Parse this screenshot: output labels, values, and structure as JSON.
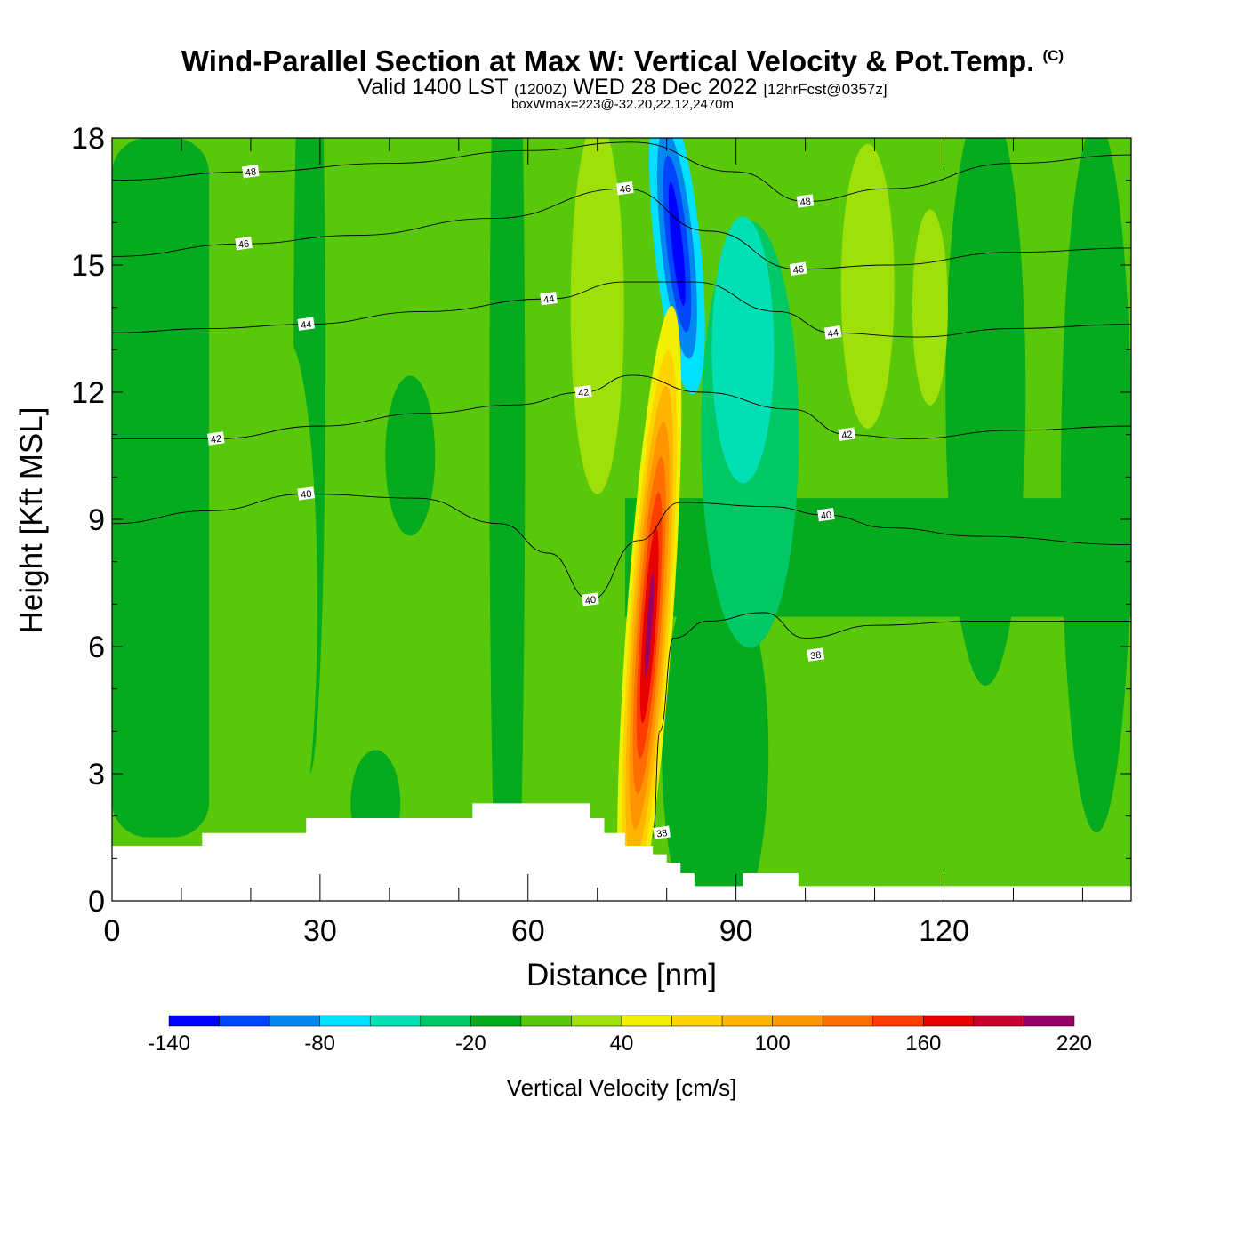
{
  "header": {
    "title": "Wind-Parallel Section at Max W: Vertical Velocity & Pot.Temp.",
    "copyright": "(C)",
    "valid_prefix": "Valid 1400 LST",
    "valid_utc": "(1200Z)",
    "valid_date": "WED 28 Dec 2022",
    "forecast": "[12hrFcst@0357z]",
    "box_info": "boxWmax=223@-32.20,22.12,2470m"
  },
  "chart_data": {
    "type": "contour-section",
    "xlabel": "Distance [nm]",
    "ylabel": "Height [Kft MSL]",
    "xlim": [
      0,
      147
    ],
    "ylim": [
      0,
      18
    ],
    "x_ticks": [
      0,
      30,
      60,
      90,
      120
    ],
    "x_tick_labels": [
      "0",
      "30",
      "60",
      "90",
      "120"
    ],
    "y_ticks": [
      0,
      3,
      6,
      9,
      12,
      15,
      18
    ],
    "y_tick_labels": [
      "0",
      "3",
      "6",
      "9",
      "12",
      "15",
      "18"
    ],
    "terrain": [
      [
        0,
        1.3
      ],
      [
        13,
        1.3
      ],
      [
        13,
        1.6
      ],
      [
        28,
        1.6
      ],
      [
        28,
        1.95
      ],
      [
        52,
        1.95
      ],
      [
        52,
        2.3
      ],
      [
        69,
        2.3
      ],
      [
        69,
        1.95
      ],
      [
        71,
        1.95
      ],
      [
        71,
        1.6
      ],
      [
        74,
        1.6
      ],
      [
        74,
        1.3
      ],
      [
        78,
        1.3
      ],
      [
        78,
        1.1
      ],
      [
        80,
        1.1
      ],
      [
        80,
        0.9
      ],
      [
        82,
        0.9
      ],
      [
        82,
        0.65
      ],
      [
        84,
        0.65
      ],
      [
        84,
        0.35
      ],
      [
        91,
        0.35
      ],
      [
        91,
        0.65
      ],
      [
        99,
        0.65
      ],
      [
        99,
        0.35
      ],
      [
        147,
        0.35
      ]
    ],
    "fields": [
      {
        "name": "updraft-core",
        "w": 223,
        "x": 77.5,
        "y": 6.5
      },
      {
        "name": "downdraft-core",
        "w": -135,
        "x": 81.5,
        "y": 15.5
      },
      {
        "name": "downdraft-lobe",
        "w": -45,
        "x": 92,
        "y": 11
      },
      {
        "name": "rising-band-left",
        "w": 15,
        "x": 25,
        "y": 7
      },
      {
        "name": "rising-band-right",
        "w": 30,
        "x": 118,
        "y": 14
      }
    ],
    "colorbar": {
      "title": "Vertical Velocity [cm/s]",
      "boundaries": [
        -140,
        -120,
        -100,
        -80,
        -60,
        -40,
        -20,
        0,
        20,
        40,
        60,
        80,
        100,
        120,
        140,
        160,
        180,
        200,
        220
      ],
      "colors": [
        "#0000ff",
        "#0044ff",
        "#0088f0",
        "#00e0ff",
        "#00e0b4",
        "#00c864",
        "#05aa1e",
        "#5ac80a",
        "#a0e00a",
        "#f0f000",
        "#ffd200",
        "#ffb400",
        "#ff9600",
        "#ff6e00",
        "#ff3c00",
        "#e60000",
        "#c8002d",
        "#960064"
      ],
      "tick_values": [
        -140,
        -80,
        -20,
        40,
        100,
        160,
        220
      ],
      "tick_labels": [
        "-140",
        "-80",
        "-20",
        "40",
        "100",
        "160",
        "220"
      ]
    },
    "theta_contours": [
      {
        "label": "38",
        "label_at": [
          [
            79.3,
            1.6
          ],
          [
            101.5,
            5.8
          ]
        ],
        "points": [
          [
            78,
            1.5
          ],
          [
            79,
            4
          ],
          [
            81,
            6.2
          ],
          [
            86,
            6.6
          ],
          [
            94,
            6.8
          ],
          [
            100,
            6.2
          ],
          [
            110,
            6.5
          ],
          [
            125,
            6.6
          ],
          [
            147,
            6.6
          ]
        ]
      },
      {
        "label": "40",
        "label_at": [
          [
            28,
            9.6
          ],
          [
            69,
            7.1
          ],
          [
            103,
            9.1
          ]
        ],
        "points": [
          [
            0,
            8.9
          ],
          [
            14,
            9.2
          ],
          [
            28,
            9.6
          ],
          [
            44,
            9.5
          ],
          [
            56,
            8.9
          ],
          [
            63,
            8.2
          ],
          [
            69,
            7.1
          ],
          [
            76,
            8.5
          ],
          [
            82,
            9.4
          ],
          [
            95,
            9.3
          ],
          [
            103,
            9.1
          ],
          [
            112,
            8.8
          ],
          [
            125,
            8.6
          ],
          [
            147,
            8.4
          ]
        ]
      },
      {
        "label": "42",
        "label_at": [
          [
            15,
            10.9
          ],
          [
            68,
            12.0
          ],
          [
            106,
            11.0
          ]
        ],
        "points": [
          [
            0,
            10.9
          ],
          [
            15,
            10.9
          ],
          [
            30,
            11.2
          ],
          [
            45,
            11.5
          ],
          [
            58,
            11.7
          ],
          [
            68,
            12.0
          ],
          [
            75,
            12.4
          ],
          [
            85,
            12.0
          ],
          [
            98,
            11.6
          ],
          [
            106,
            11.0
          ],
          [
            115,
            10.9
          ],
          [
            130,
            11.1
          ],
          [
            147,
            11.2
          ]
        ]
      },
      {
        "label": "44",
        "label_at": [
          [
            28,
            13.6
          ],
          [
            63,
            14.2
          ],
          [
            104,
            13.4
          ]
        ],
        "points": [
          [
            0,
            13.4
          ],
          [
            14,
            13.5
          ],
          [
            28,
            13.6
          ],
          [
            45,
            13.9
          ],
          [
            63,
            14.2
          ],
          [
            74,
            14.6
          ],
          [
            84,
            14.6
          ],
          [
            96,
            13.9
          ],
          [
            104,
            13.4
          ],
          [
            116,
            13.3
          ],
          [
            130,
            13.5
          ],
          [
            147,
            13.6
          ]
        ]
      },
      {
        "label": "46",
        "label_at": [
          [
            19,
            15.5
          ],
          [
            74,
            16.8
          ],
          [
            99,
            14.9
          ]
        ],
        "points": [
          [
            0,
            15.2
          ],
          [
            19,
            15.5
          ],
          [
            35,
            15.7
          ],
          [
            55,
            16.1
          ],
          [
            74,
            16.8
          ],
          [
            86,
            15.8
          ],
          [
            99,
            14.9
          ],
          [
            112,
            15.0
          ],
          [
            130,
            15.3
          ],
          [
            147,
            15.4
          ]
        ]
      },
      {
        "label": "48",
        "label_at": [
          [
            20,
            17.2
          ],
          [
            100,
            16.5
          ]
        ],
        "points": [
          [
            0,
            17.0
          ],
          [
            20,
            17.2
          ],
          [
            40,
            17.4
          ],
          [
            60,
            17.7
          ],
          [
            75,
            17.9
          ],
          [
            90,
            17.2
          ],
          [
            100,
            16.5
          ],
          [
            112,
            16.8
          ],
          [
            130,
            17.4
          ],
          [
            147,
            17.6
          ]
        ]
      }
    ]
  }
}
